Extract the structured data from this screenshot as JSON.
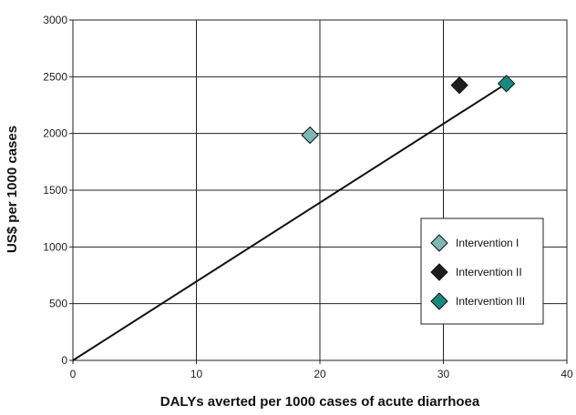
{
  "chart_data": {
    "type": "scatter",
    "title": "",
    "xlabel": "DALYs averted per 1000 cases of acute diarrhoea",
    "ylabel": "US$ per 1000 cases",
    "xlim": [
      0,
      40
    ],
    "ylim": [
      0,
      3000
    ],
    "x_ticks": [
      "0",
      "10",
      "20",
      "30",
      "40"
    ],
    "y_ticks": [
      "0",
      "500",
      "1000",
      "1500",
      "2000",
      "2500",
      "3000"
    ],
    "grid": true,
    "legend_position": "right",
    "series": [
      {
        "name": "Intervention I",
        "x": 19.2,
        "y": 1985,
        "color": "#7fb7b3",
        "marker": "diamond"
      },
      {
        "name": "Intervention II",
        "x": 31.3,
        "y": 2425,
        "color": "#1e1e1e",
        "marker": "diamond"
      },
      {
        "name": "Intervention III",
        "x": 35.1,
        "y": 2440,
        "color": "#1a8a80",
        "marker": "diamond"
      }
    ],
    "reference_line": {
      "x": [
        0,
        35.1
      ],
      "y": [
        0,
        2440
      ],
      "color": "#111111"
    }
  }
}
